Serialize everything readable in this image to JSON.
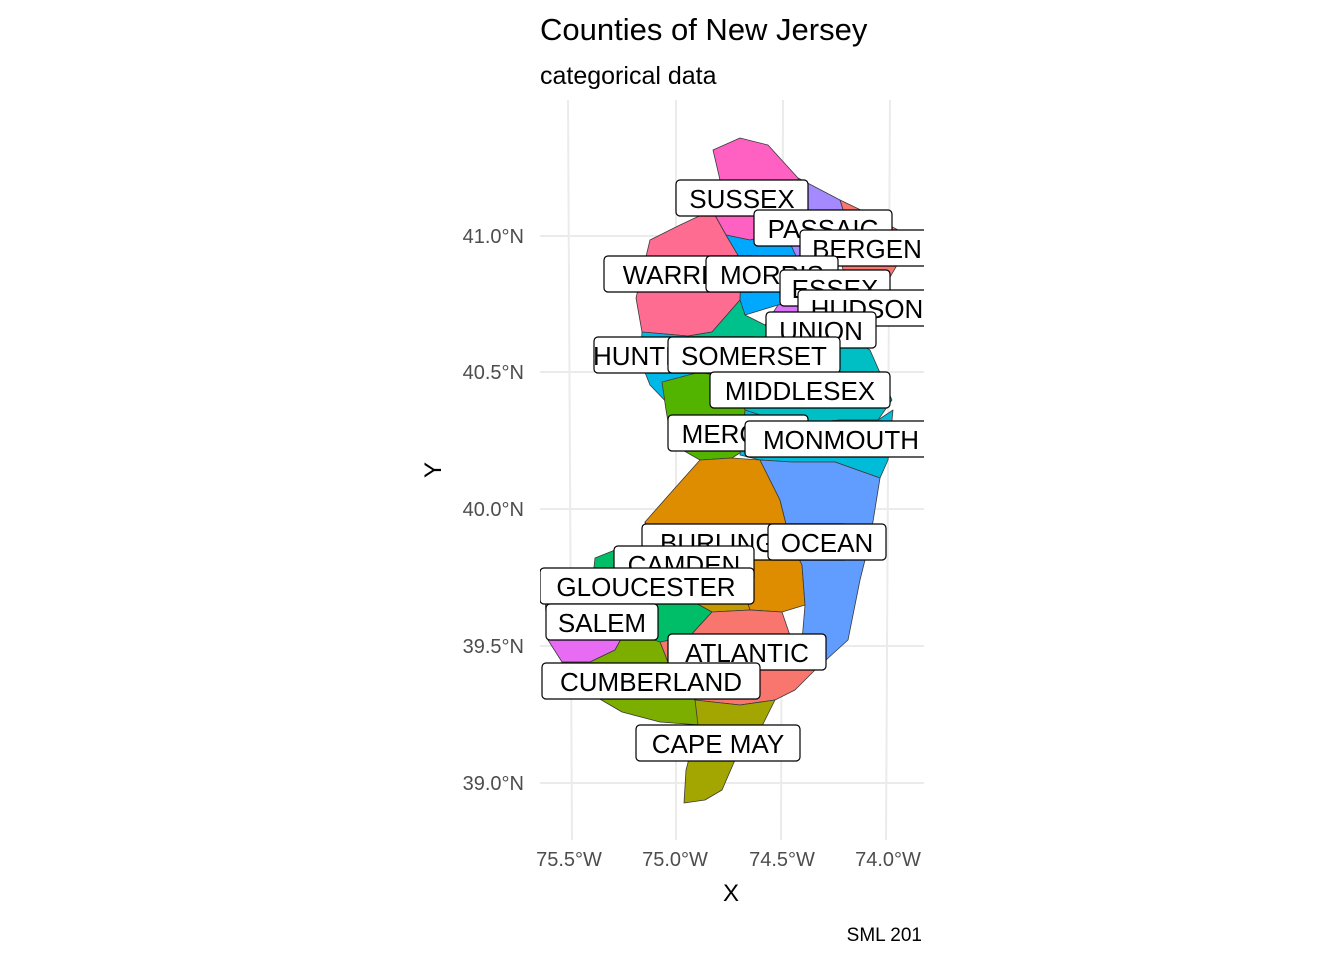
{
  "title": "Counties of New Jersey",
  "subtitle": "categorical data",
  "x_axis": {
    "title": "X",
    "ticks": [
      "75.5°W",
      "75.0°W",
      "74.5°W",
      "74.0°W"
    ]
  },
  "y_axis": {
    "title": "Y",
    "ticks": [
      "41.0°N",
      "40.5°N",
      "40.0°N",
      "39.5°N",
      "39.0°N"
    ]
  },
  "caption": "SML 201",
  "counties": [
    {
      "name": "SUSSEX",
      "color": "#FF61C3"
    },
    {
      "name": "PASSAIC",
      "color": "#A58AFF"
    },
    {
      "name": "BERGEN",
      "color": "#F8766D"
    },
    {
      "name": "WARREN",
      "color": "#FF6C91"
    },
    {
      "name": "MORRIS",
      "color": "#00A9FF"
    },
    {
      "name": "ESSEX",
      "color": "#00BA38"
    },
    {
      "name": "HUDSON",
      "color": "#7CAE00"
    },
    {
      "name": "UNION",
      "color": "#DB72FB"
    },
    {
      "name": "HUNTERDON",
      "color": "#00B8E7"
    },
    {
      "name": "SOMERSET",
      "color": "#00C08B"
    },
    {
      "name": "MIDDLESEX",
      "color": "#00BFC4"
    },
    {
      "name": "MERCER",
      "color": "#53B400"
    },
    {
      "name": "MONMOUTH",
      "color": "#00BCD8"
    },
    {
      "name": "BURLINGTON",
      "color": "#DE8C00"
    },
    {
      "name": "OCEAN",
      "color": "#619CFF"
    },
    {
      "name": "CAMDEN",
      "color": "#C49A00"
    },
    {
      "name": "GLOUCESTER",
      "color": "#00BE67"
    },
    {
      "name": "SALEM",
      "color": "#E76BF3"
    },
    {
      "name": "ATLANTIC",
      "color": "#F8766D"
    },
    {
      "name": "CUMBERLAND",
      "color": "#7CAE00"
    },
    {
      "name": "CAPE MAY",
      "color": "#A3A500"
    }
  ]
}
